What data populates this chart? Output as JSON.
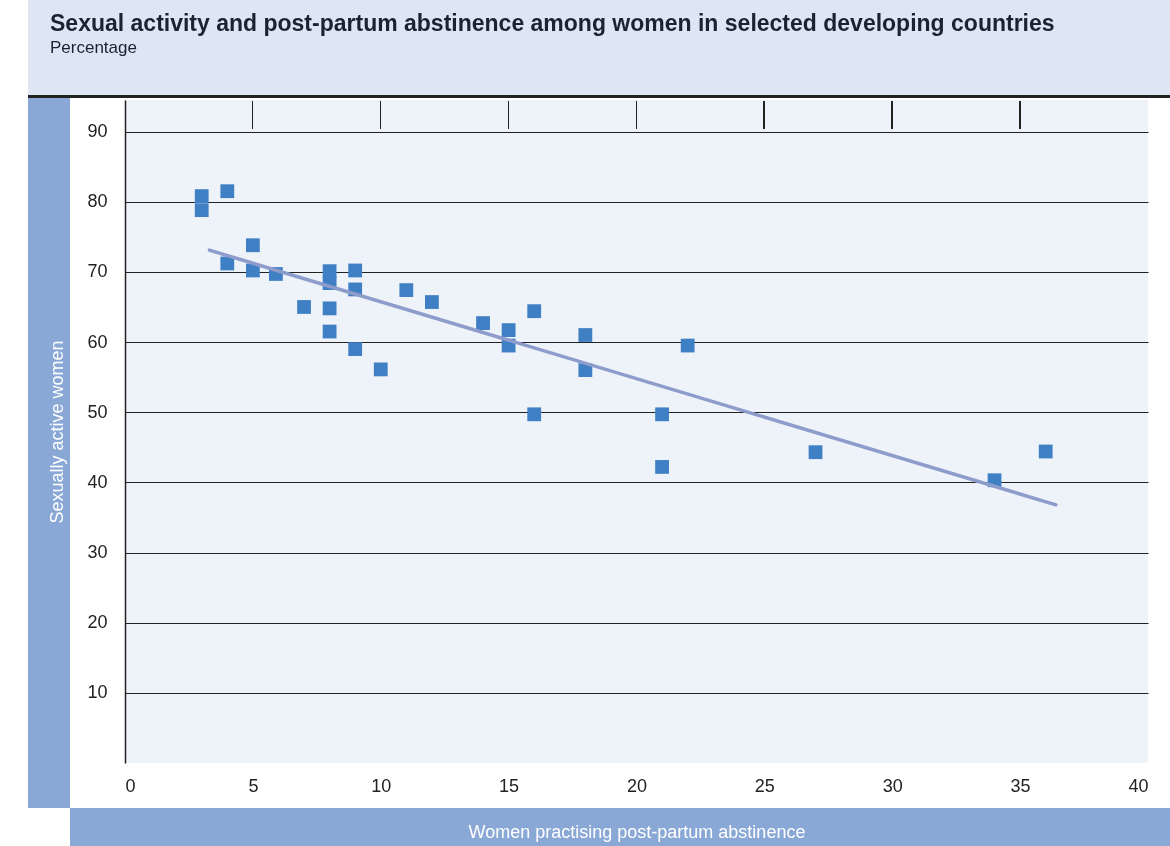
{
  "chart_data": {
    "type": "scatter",
    "title": "Sexual activity and post-partum abstinence among women in selected developing countries",
    "subtitle": "Percentage",
    "xlabel": "Women practising post-partum abstinence",
    "ylabel": "Sexually active women",
    "series": [
      {
        "color": "#3f7fc4",
        "x": [
          3,
          3,
          4,
          4,
          5,
          5,
          5.9,
          7,
          8,
          8,
          8,
          8,
          9,
          9,
          9,
          10,
          11,
          12,
          14,
          15,
          15,
          16,
          16,
          18,
          18,
          21,
          21,
          22,
          27,
          34,
          36
        ],
        "values": [
          80.8,
          78.8,
          81.5,
          71.2,
          73.8,
          70.2,
          69.7,
          65,
          70.1,
          68.4,
          64.8,
          61.5,
          70.2,
          67.5,
          59,
          56.1,
          67.4,
          65.7,
          62.7,
          61.7,
          59.5,
          64.4,
          49.7,
          61,
          56,
          49.7,
          42.2,
          59.5,
          44.3,
          40.3,
          44.4
        ]
      },
      {
        "type": "line",
        "marker": "none",
        "color": "#8e9ccc",
        "x": [
          3.3,
          36.4
        ],
        "values": [
          73.1,
          36.8
        ]
      }
    ],
    "xlim": [
      0,
      40
    ],
    "xticks": [
      0,
      5,
      10,
      15,
      20,
      25,
      30,
      35,
      40
    ],
    "ylim": [
      0,
      94.5
    ],
    "yticks": [
      10,
      20,
      30,
      40,
      50,
      60,
      70,
      80,
      90
    ],
    "grid": "y",
    "marker": "square"
  }
}
